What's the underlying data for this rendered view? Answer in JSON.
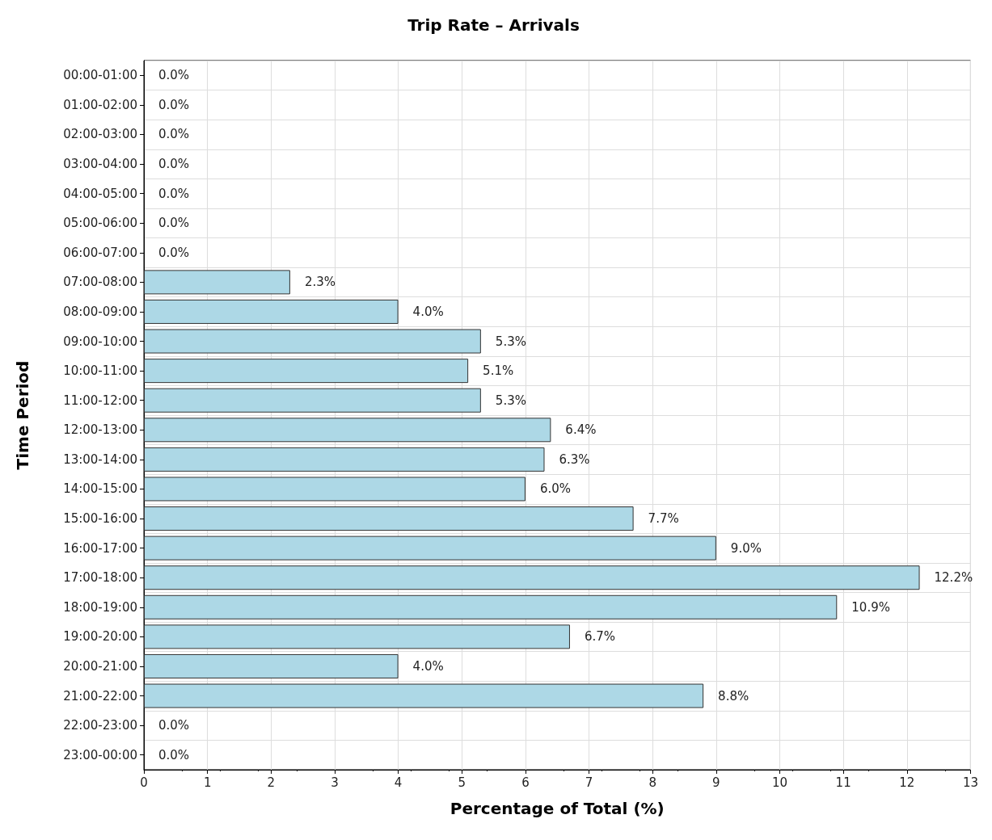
{
  "chart_data": {
    "type": "bar",
    "title": "Trip Rate – Arrivals",
    "xlabel": "Percentage of Total (%)",
    "ylabel": "Time Period",
    "orientation": "horizontal",
    "categories": [
      "00:00-01:00",
      "01:00-02:00",
      "02:00-03:00",
      "03:00-04:00",
      "04:00-05:00",
      "05:00-06:00",
      "06:00-07:00",
      "07:00-08:00",
      "08:00-09:00",
      "09:00-10:00",
      "10:00-11:00",
      "11:00-12:00",
      "12:00-13:00",
      "13:00-14:00",
      "14:00-15:00",
      "15:00-16:00",
      "16:00-17:00",
      "17:00-18:00",
      "18:00-19:00",
      "19:00-20:00",
      "20:00-21:00",
      "21:00-22:00",
      "22:00-23:00",
      "23:00-00:00"
    ],
    "values": [
      0,
      0,
      0,
      0,
      0,
      0,
      0,
      2.3,
      4.0,
      5.3,
      5.1,
      5.3,
      6.4,
      6.3,
      6.0,
      7.7,
      9.0,
      12.2,
      10.9,
      6.7,
      4.0,
      8.8,
      0,
      0
    ],
    "value_labels": [
      "0.0%",
      "0.0%",
      "0.0%",
      "0.0%",
      "0.0%",
      "0.0%",
      "0.0%",
      "2.3%",
      "4.0%",
      "5.3%",
      "5.1%",
      "5.3%",
      "6.4%",
      "6.3%",
      "6.0%",
      "7.7%",
      "9.0%",
      "12.2%",
      "10.9%",
      "6.7%",
      "4.0%",
      "8.8%",
      "0.0%",
      "0.0%"
    ],
    "color": "#add8e6",
    "xlim": [
      0,
      13
    ],
    "xticks": [
      0,
      1,
      2,
      3,
      4,
      5,
      6,
      7,
      8,
      9,
      10,
      11,
      12,
      13
    ],
    "grid": true
  }
}
